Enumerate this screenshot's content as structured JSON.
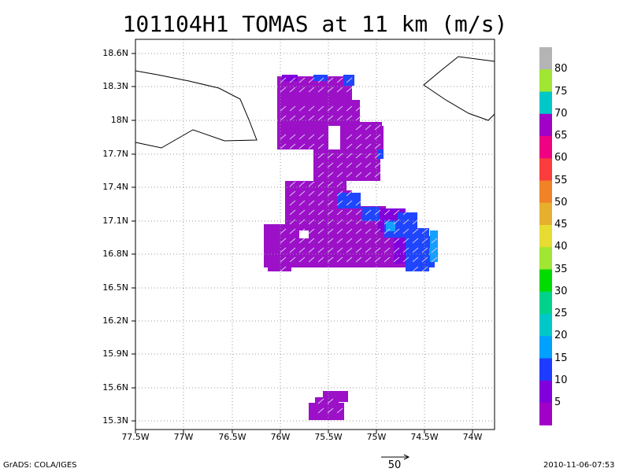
{
  "title": "101104H1 TOMAS at 11 km (m/s)",
  "footer": {
    "source": "GrADS: COLA/IGES",
    "timestamp": "2010-11-06-07:53"
  },
  "vector_reference": {
    "label": "50"
  },
  "map": {
    "lat_range": [
      15.2,
      18.7
    ],
    "lon_range": [
      -77.5,
      -73.75
    ],
    "lat_ticks": [
      "18.6N",
      "18.3N",
      "18N",
      "17.7N",
      "17.4N",
      "17.1N",
      "16.8N",
      "16.5N",
      "16.2N",
      "15.9N",
      "15.6N",
      "15.3N"
    ],
    "lon_ticks": [
      "77.5W",
      "77W",
      "76.5W",
      "76W",
      "75.5W",
      "75W",
      "74.5W",
      "74W"
    ]
  },
  "colorbar": {
    "labels": [
      "5",
      "10",
      "15",
      "20",
      "25",
      "30",
      "35",
      "40",
      "45",
      "50",
      "55",
      "60",
      "65",
      "70",
      "75",
      "80"
    ],
    "colors": [
      "#a000c8",
      "#8200dc",
      "#1e3cff",
      "#00a0ff",
      "#00c8c8",
      "#00d28c",
      "#00dc00",
      "#a0e632",
      "#e6dc32",
      "#e6af2d",
      "#f08228",
      "#fa3c3c",
      "#f00082",
      "#a000c8",
      "#00c8c8",
      "#a0e632",
      "#b4b4b4"
    ]
  }
}
